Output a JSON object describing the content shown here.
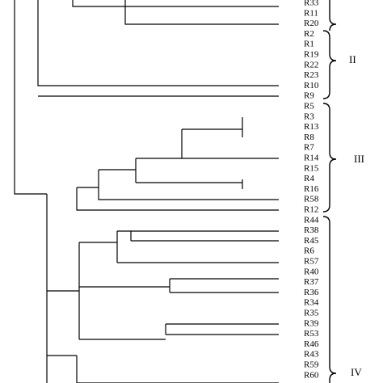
{
  "leaves": [
    "R33",
    "R11",
    "R20",
    "R2",
    "R1",
    "R19",
    "R22",
    "R23",
    "R10",
    "R9",
    "R5",
    "R3",
    "R13",
    "R8",
    "R7",
    "R14",
    "R15",
    "R4",
    "R16",
    "R58",
    "R12",
    "R44",
    "R38",
    "R45",
    "R6",
    "R57",
    "R40",
    "R37",
    "R36",
    "R34",
    "R35",
    "R39",
    "R53",
    "R46",
    "R43",
    "R59",
    "R60"
  ],
  "groups": [
    "II",
    "III",
    "IV"
  ]
}
